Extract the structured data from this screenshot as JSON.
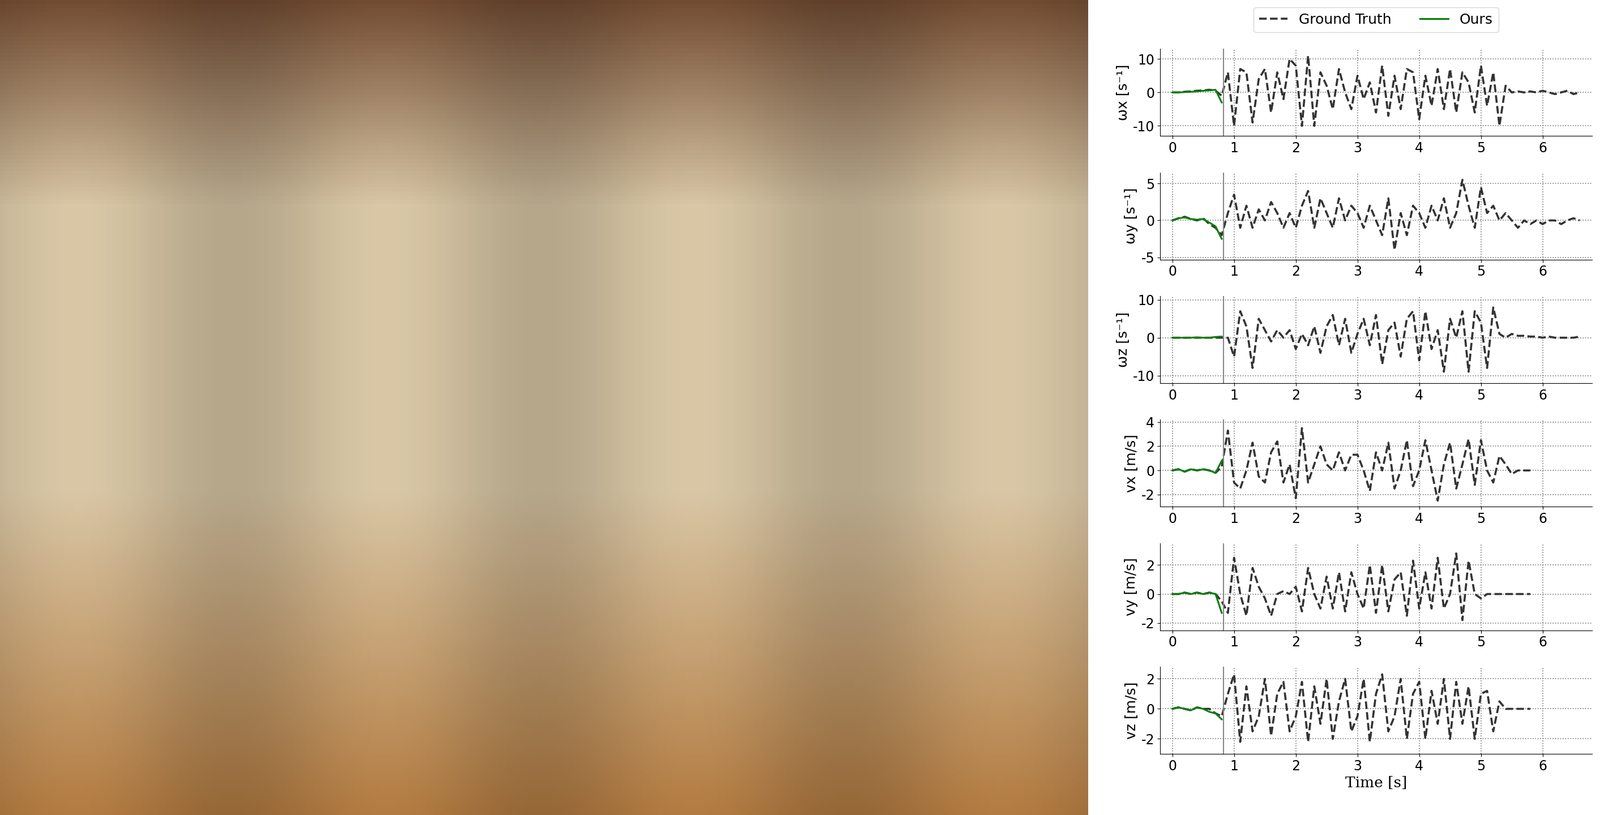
{
  "chart_data": [
    {
      "type": "line",
      "ylabel": "ωx [s⁻¹]",
      "xlim": [
        -0.2,
        6.8
      ],
      "xticks": [
        0,
        1,
        2,
        3,
        4,
        5,
        6
      ],
      "ylim": [
        -13,
        13
      ],
      "yticks": [
        -10,
        0,
        10
      ],
      "grid": true,
      "legend": "upper center",
      "vlines": [
        0.83
      ],
      "series": [
        {
          "name": "Ground Truth",
          "color": "#333333",
          "line_style": "dashed",
          "x": [
            0,
            0.1,
            0.2,
            0.3,
            0.4,
            0.5,
            0.6,
            0.7,
            0.8,
            0.9,
            1.0,
            1.1,
            1.2,
            1.3,
            1.4,
            1.5,
            1.6,
            1.7,
            1.8,
            1.9,
            2.0,
            2.1,
            2.2,
            2.3,
            2.4,
            2.5,
            2.6,
            2.7,
            2.8,
            2.9,
            3.0,
            3.1,
            3.2,
            3.3,
            3.4,
            3.5,
            3.6,
            3.7,
            3.8,
            3.9,
            4.0,
            4.1,
            4.2,
            4.3,
            4.4,
            4.5,
            4.6,
            4.7,
            4.8,
            4.9,
            5.0,
            5.1,
            5.2,
            5.3,
            5.4,
            5.5,
            5.6,
            5.7,
            5.8,
            5.9,
            6.0,
            6.1,
            6.2,
            6.3,
            6.4,
            6.5,
            6.6
          ],
          "values": [
            0,
            0,
            0.2,
            0.3,
            0.5,
            0.6,
            0.8,
            0.5,
            -1,
            6,
            -10,
            7,
            6,
            -9,
            4,
            7,
            -6,
            6,
            -2,
            10,
            8,
            -10,
            11,
            -10,
            6,
            2,
            -5,
            7,
            0,
            -5,
            5,
            -2,
            3,
            -6,
            8,
            -7,
            5,
            -5,
            7,
            6,
            -8,
            5,
            -4,
            7,
            -5,
            7,
            -6,
            6,
            3,
            -6,
            8,
            -4,
            6,
            -10,
            2,
            0,
            0.3,
            0,
            0.3,
            0,
            0.5,
            0,
            -0.5,
            0,
            0.5,
            -0.5,
            0
          ]
        },
        {
          "name": "Ours",
          "color": "green",
          "line_style": "solid",
          "x": [
            0,
            0.1,
            0.2,
            0.3,
            0.4,
            0.5,
            0.6,
            0.7,
            0.8
          ],
          "values": [
            0,
            0,
            0.1,
            0.2,
            0.3,
            0.5,
            0.6,
            0.8,
            -3
          ]
        }
      ]
    },
    {
      "type": "line",
      "ylabel": "ωy [s⁻¹]",
      "xlim": [
        -0.2,
        6.8
      ],
      "xticks": [
        0,
        1,
        2,
        3,
        4,
        5,
        6
      ],
      "ylim": [
        -5.3,
        6.5
      ],
      "yticks": [
        -5,
        0,
        5
      ],
      "grid": true,
      "vlines": [
        0.83
      ],
      "series": [
        {
          "name": "Ground Truth",
          "color": "#333333",
          "line_style": "dashed",
          "x": [
            0,
            0.1,
            0.2,
            0.3,
            0.4,
            0.5,
            0.6,
            0.7,
            0.8,
            0.9,
            1.0,
            1.1,
            1.2,
            1.3,
            1.4,
            1.5,
            1.6,
            1.7,
            1.8,
            1.9,
            2.0,
            2.1,
            2.2,
            2.3,
            2.4,
            2.5,
            2.6,
            2.7,
            2.8,
            2.9,
            3.0,
            3.1,
            3.2,
            3.3,
            3.4,
            3.5,
            3.6,
            3.7,
            3.8,
            3.9,
            4.0,
            4.1,
            4.2,
            4.3,
            4.4,
            4.5,
            4.6,
            4.7,
            4.8,
            4.9,
            5.0,
            5.1,
            5.2,
            5.3,
            5.4,
            5.5,
            5.6,
            5.7,
            5.8,
            5.9,
            6.0,
            6.1,
            6.2,
            6.3,
            6.4,
            6.5,
            6.6
          ],
          "values": [
            0,
            0.3,
            0.5,
            0.2,
            0,
            0.3,
            -0.5,
            -1,
            -2,
            1,
            3.5,
            -1,
            2,
            -1,
            1.5,
            0,
            2.5,
            1,
            -1,
            1,
            -1,
            2,
            4,
            -1,
            3,
            1,
            -1,
            3,
            0,
            2,
            1,
            -1,
            2,
            0,
            -2,
            3,
            -4,
            1,
            -2,
            2,
            1,
            -1,
            2,
            0,
            3,
            -1,
            1,
            5.5,
            2,
            -1,
            4.5,
            1,
            2,
            0,
            1,
            0,
            -1,
            0,
            -0.5,
            0,
            -0.5,
            0,
            0,
            -0.5,
            0,
            0.3,
            0
          ]
        },
        {
          "name": "Ours",
          "color": "green",
          "line_style": "solid",
          "x": [
            0,
            0.1,
            0.2,
            0.3,
            0.4,
            0.5,
            0.6,
            0.7,
            0.8
          ],
          "values": [
            0,
            0.3,
            0.4,
            0.2,
            0.1,
            0.2,
            -0.3,
            -0.8,
            -2.5
          ]
        }
      ]
    },
    {
      "type": "line",
      "ylabel": "ωz [s⁻¹]",
      "xlim": [
        -0.2,
        6.8
      ],
      "xticks": [
        0,
        1,
        2,
        3,
        4,
        5,
        6
      ],
      "ylim": [
        -12,
        11
      ],
      "yticks": [
        -10,
        0,
        10
      ],
      "grid": true,
      "vlines": [
        0.83
      ],
      "series": [
        {
          "name": "Ground Truth",
          "color": "#333333",
          "line_style": "dashed",
          "x": [
            0,
            0.1,
            0.2,
            0.3,
            0.4,
            0.5,
            0.6,
            0.7,
            0.8,
            0.9,
            1.0,
            1.1,
            1.2,
            1.3,
            1.4,
            1.5,
            1.6,
            1.7,
            1.8,
            1.9,
            2.0,
            2.1,
            2.2,
            2.3,
            2.4,
            2.5,
            2.6,
            2.7,
            2.8,
            2.9,
            3.0,
            3.1,
            3.2,
            3.3,
            3.4,
            3.5,
            3.6,
            3.7,
            3.8,
            3.9,
            4.0,
            4.1,
            4.2,
            4.3,
            4.4,
            4.5,
            4.6,
            4.7,
            4.8,
            4.9,
            5.0,
            5.1,
            5.2,
            5.3,
            5.4,
            5.5,
            5.6,
            5.7,
            5.8,
            5.9,
            6.0,
            6.1,
            6.2,
            6.3,
            6.4,
            6.5,
            6.6
          ],
          "values": [
            0,
            0,
            0,
            0,
            0,
            0,
            0,
            0,
            0,
            0,
            -5,
            7,
            3,
            -8,
            5,
            2,
            -1,
            2,
            0,
            2,
            -3,
            1,
            -2,
            3,
            -4,
            3,
            6,
            -2,
            5,
            -4,
            1,
            5,
            -2,
            6,
            -7,
            2,
            4,
            -5,
            5,
            7,
            -6,
            7,
            -3,
            2,
            -9,
            5,
            0,
            7,
            -9,
            7,
            4,
            -8,
            8,
            1,
            0,
            1,
            0.5,
            0.5,
            0.3,
            0.3,
            0,
            0.3,
            0,
            0,
            0,
            0,
            0.3
          ]
        },
        {
          "name": "Ours",
          "color": "green",
          "line_style": "solid",
          "x": [
            0,
            0.1,
            0.2,
            0.3,
            0.4,
            0.5,
            0.6,
            0.7,
            0.8
          ],
          "values": [
            0,
            0,
            0,
            0,
            0.1,
            0,
            0,
            0.2,
            0.3
          ]
        }
      ]
    },
    {
      "type": "line",
      "ylabel": "vx [m/s]",
      "xlim": [
        -0.2,
        6.8
      ],
      "xticks": [
        0,
        1,
        2,
        3,
        4,
        5,
        6
      ],
      "ylim": [
        -3,
        4.2
      ],
      "yticks": [
        -2,
        0,
        2,
        4
      ],
      "grid": true,
      "vlines": [
        0.83
      ],
      "series": [
        {
          "name": "Ground Truth",
          "color": "#333333",
          "line_style": "dashed",
          "x": [
            0,
            0.1,
            0.2,
            0.3,
            0.4,
            0.5,
            0.6,
            0.7,
            0.8,
            0.9,
            1.0,
            1.1,
            1.2,
            1.3,
            1.4,
            1.5,
            1.6,
            1.7,
            1.8,
            1.9,
            2.0,
            2.1,
            2.2,
            2.3,
            2.4,
            2.5,
            2.6,
            2.7,
            2.8,
            2.9,
            3.0,
            3.1,
            3.2,
            3.3,
            3.4,
            3.5,
            3.6,
            3.7,
            3.8,
            3.9,
            4.0,
            4.1,
            4.2,
            4.3,
            4.4,
            4.5,
            4.6,
            4.7,
            4.8,
            4.9,
            5.0,
            5.1,
            5.2,
            5.3,
            5.4,
            5.5,
            5.6,
            5.7,
            5.8
          ],
          "values": [
            0,
            0.1,
            -0.1,
            0.1,
            0,
            0.1,
            0,
            -0.2,
            0.3,
            3.3,
            -1,
            -1.5,
            0,
            2.3,
            -0.5,
            -1,
            1.5,
            2.4,
            -1,
            0.5,
            -2.3,
            3.5,
            -1,
            0.5,
            2,
            0.5,
            0,
            1.5,
            0,
            1.3,
            1.3,
            0,
            -1.7,
            1.5,
            0,
            2.3,
            -1.5,
            0,
            2.5,
            -1.3,
            0,
            2.5,
            0,
            -2.5,
            0.5,
            2.3,
            -1.5,
            0.5,
            2.6,
            -1.2,
            2.5,
            0,
            -1,
            1.2,
            0.5,
            -0.3,
            0,
            0,
            0
          ]
        },
        {
          "name": "Ours",
          "color": "green",
          "line_style": "solid",
          "x": [
            0,
            0.1,
            0.2,
            0.3,
            0.4,
            0.5,
            0.6,
            0.7,
            0.8
          ],
          "values": [
            0,
            0.1,
            -0.1,
            0.1,
            0,
            0.1,
            0,
            -0.2,
            0.8
          ]
        }
      ]
    },
    {
      "type": "line",
      "ylabel": "vy [m/s]",
      "xlim": [
        -0.2,
        6.8
      ],
      "xticks": [
        0,
        1,
        2,
        3,
        4,
        5,
        6
      ],
      "ylim": [
        -2.5,
        3.5
      ],
      "yticks": [
        -2,
        0,
        2
      ],
      "grid": true,
      "vlines": [
        0.83
      ],
      "series": [
        {
          "name": "Ground Truth",
          "color": "#333333",
          "line_style": "dashed",
          "x": [
            0,
            0.1,
            0.2,
            0.3,
            0.4,
            0.5,
            0.6,
            0.7,
            0.8,
            0.9,
            1.0,
            1.1,
            1.2,
            1.3,
            1.4,
            1.5,
            1.6,
            1.7,
            1.8,
            1.9,
            2.0,
            2.1,
            2.2,
            2.3,
            2.4,
            2.5,
            2.6,
            2.7,
            2.8,
            2.9,
            3.0,
            3.1,
            3.2,
            3.3,
            3.4,
            3.5,
            3.6,
            3.7,
            3.8,
            3.9,
            4.0,
            4.1,
            4.2,
            4.3,
            4.4,
            4.5,
            4.6,
            4.7,
            4.8,
            4.9,
            5.0,
            5.1,
            5.2,
            5.3,
            5.4,
            5.5,
            5.6,
            5.7,
            5.8
          ],
          "values": [
            0,
            0,
            0.1,
            0,
            0.1,
            0,
            0.1,
            0,
            -0.5,
            -1.3,
            2.5,
            0,
            -1.5,
            1.8,
            0.5,
            -0.3,
            -1.5,
            0,
            0.2,
            0,
            0.5,
            -1.2,
            1.8,
            0,
            -1,
            1.2,
            -1,
            1.5,
            -1.2,
            1.5,
            0,
            -1,
            2,
            -1.3,
            2,
            -1.2,
            1,
            1.5,
            -1.5,
            2.3,
            -1,
            1.5,
            -1,
            2.5,
            -1,
            0,
            2.8,
            -1.8,
            2.3,
            0,
            -0.3,
            0,
            0,
            0,
            0,
            0,
            0,
            0,
            0
          ]
        },
        {
          "name": "Ours",
          "color": "green",
          "line_style": "solid",
          "x": [
            0,
            0.1,
            0.2,
            0.3,
            0.4,
            0.5,
            0.6,
            0.7,
            0.8
          ],
          "values": [
            0,
            0,
            0.1,
            0,
            0.1,
            0,
            0.1,
            0,
            -1.3
          ]
        }
      ]
    },
    {
      "type": "line",
      "ylabel": "vz [m/s]",
      "xlabel": "Time [s]",
      "xlim": [
        -0.2,
        6.8
      ],
      "xticks": [
        0,
        1,
        2,
        3,
        4,
        5,
        6
      ],
      "ylim": [
        -3,
        2.8
      ],
      "yticks": [
        -2,
        0,
        2
      ],
      "grid": true,
      "vlines": [
        0.83
      ],
      "series": [
        {
          "name": "Ground Truth",
          "color": "#333333",
          "line_style": "dashed",
          "x": [
            0,
            0.1,
            0.2,
            0.3,
            0.4,
            0.5,
            0.6,
            0.7,
            0.8,
            0.9,
            1.0,
            1.1,
            1.2,
            1.3,
            1.4,
            1.5,
            1.6,
            1.7,
            1.8,
            1.9,
            2.0,
            2.1,
            2.2,
            2.3,
            2.4,
            2.5,
            2.6,
            2.7,
            2.8,
            2.9,
            3.0,
            3.1,
            3.2,
            3.3,
            3.4,
            3.5,
            3.6,
            3.7,
            3.8,
            3.9,
            4.0,
            4.1,
            4.2,
            4.3,
            4.4,
            4.5,
            4.6,
            4.7,
            4.8,
            4.9,
            5.0,
            5.1,
            5.2,
            5.3,
            5.4,
            5.5,
            5.6,
            5.7,
            5.8
          ],
          "values": [
            0,
            0.1,
            0,
            -0.1,
            0.1,
            0,
            0,
            -0.3,
            -0.5,
            1,
            2.3,
            -2.2,
            1.5,
            -1.5,
            -0.5,
            2,
            -1.8,
            1,
            1.8,
            -1.5,
            -0.5,
            1.8,
            -2.2,
            1.5,
            -1,
            2,
            -2,
            0.5,
            2,
            -1.5,
            -0.5,
            2,
            -2.2,
            1,
            2.3,
            -1.5,
            -0.5,
            2,
            -2,
            1,
            1.8,
            -2,
            1.2,
            -1,
            2,
            -2,
            1.8,
            -1,
            1.5,
            -2,
            1,
            1.2,
            -1.5,
            0.5,
            0,
            0,
            0,
            0,
            0
          ]
        },
        {
          "name": "Ours",
          "color": "green",
          "line_style": "solid",
          "x": [
            0,
            0.1,
            0.2,
            0.3,
            0.4,
            0.5,
            0.6,
            0.7,
            0.8
          ],
          "values": [
            0,
            0.1,
            0,
            -0.1,
            0.1,
            0,
            -0.2,
            -0.3,
            -0.7
          ]
        }
      ]
    }
  ]
}
